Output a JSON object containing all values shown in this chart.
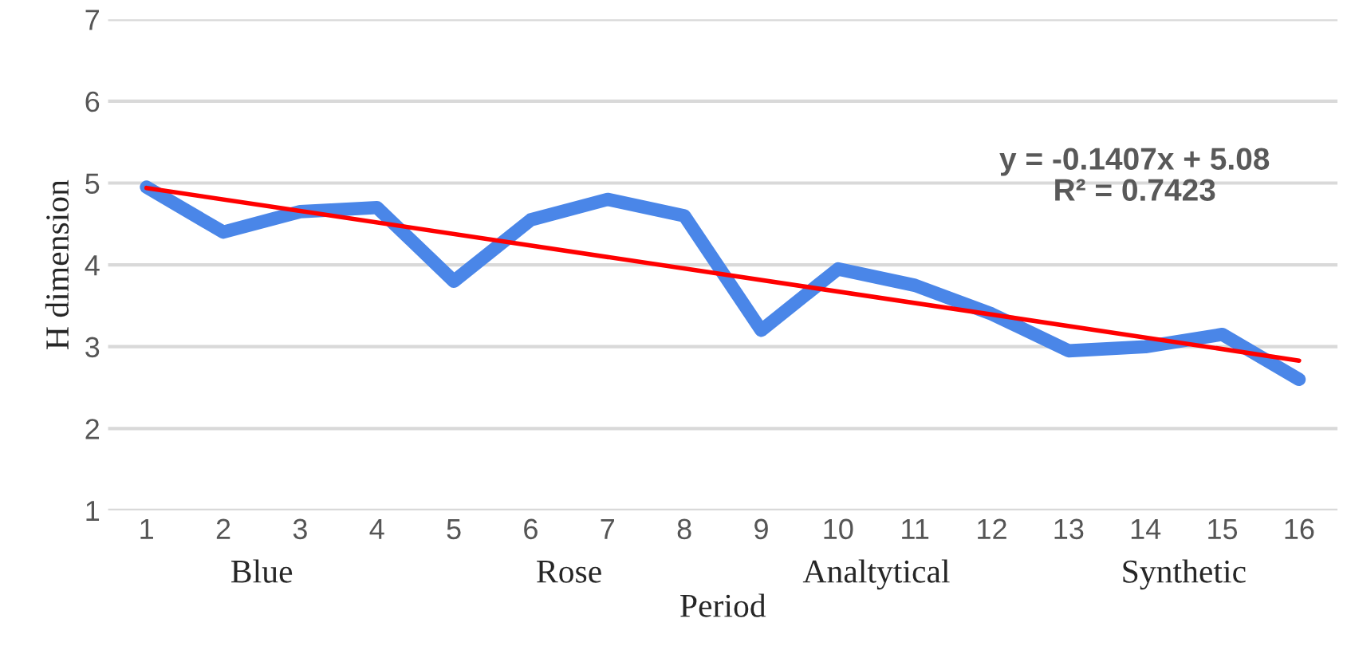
{
  "chart_data": {
    "type": "line",
    "xlabel": "Period",
    "ylabel": "H dimension",
    "categories": [
      "1",
      "2",
      "3",
      "4",
      "5",
      "6",
      "7",
      "8",
      "9",
      "10",
      "11",
      "12",
      "13",
      "14",
      "15",
      "16"
    ],
    "series": [
      {
        "color": "#4a86e8",
        "values": [
          4.95,
          4.4,
          4.65,
          4.7,
          3.8,
          4.55,
          4.8,
          4.6,
          3.2,
          3.95,
          3.75,
          3.4,
          2.95,
          3.0,
          3.15,
          2.6
        ]
      },
      {
        "type": "line",
        "color": "#ff0000",
        "x": [
          "1",
          "16"
        ],
        "values": [
          4.94,
          2.83
        ]
      }
    ],
    "ylim": [
      1,
      7
    ],
    "yticks": [
      1,
      2,
      3,
      4,
      5,
      6,
      7
    ],
    "grid": "y",
    "legend": false,
    "annotations": [
      "Blue",
      "Rose",
      "Analtytical",
      "Synthetic",
      "y = -0.1407x + 5.08\nR² = 0.7423"
    ]
  }
}
